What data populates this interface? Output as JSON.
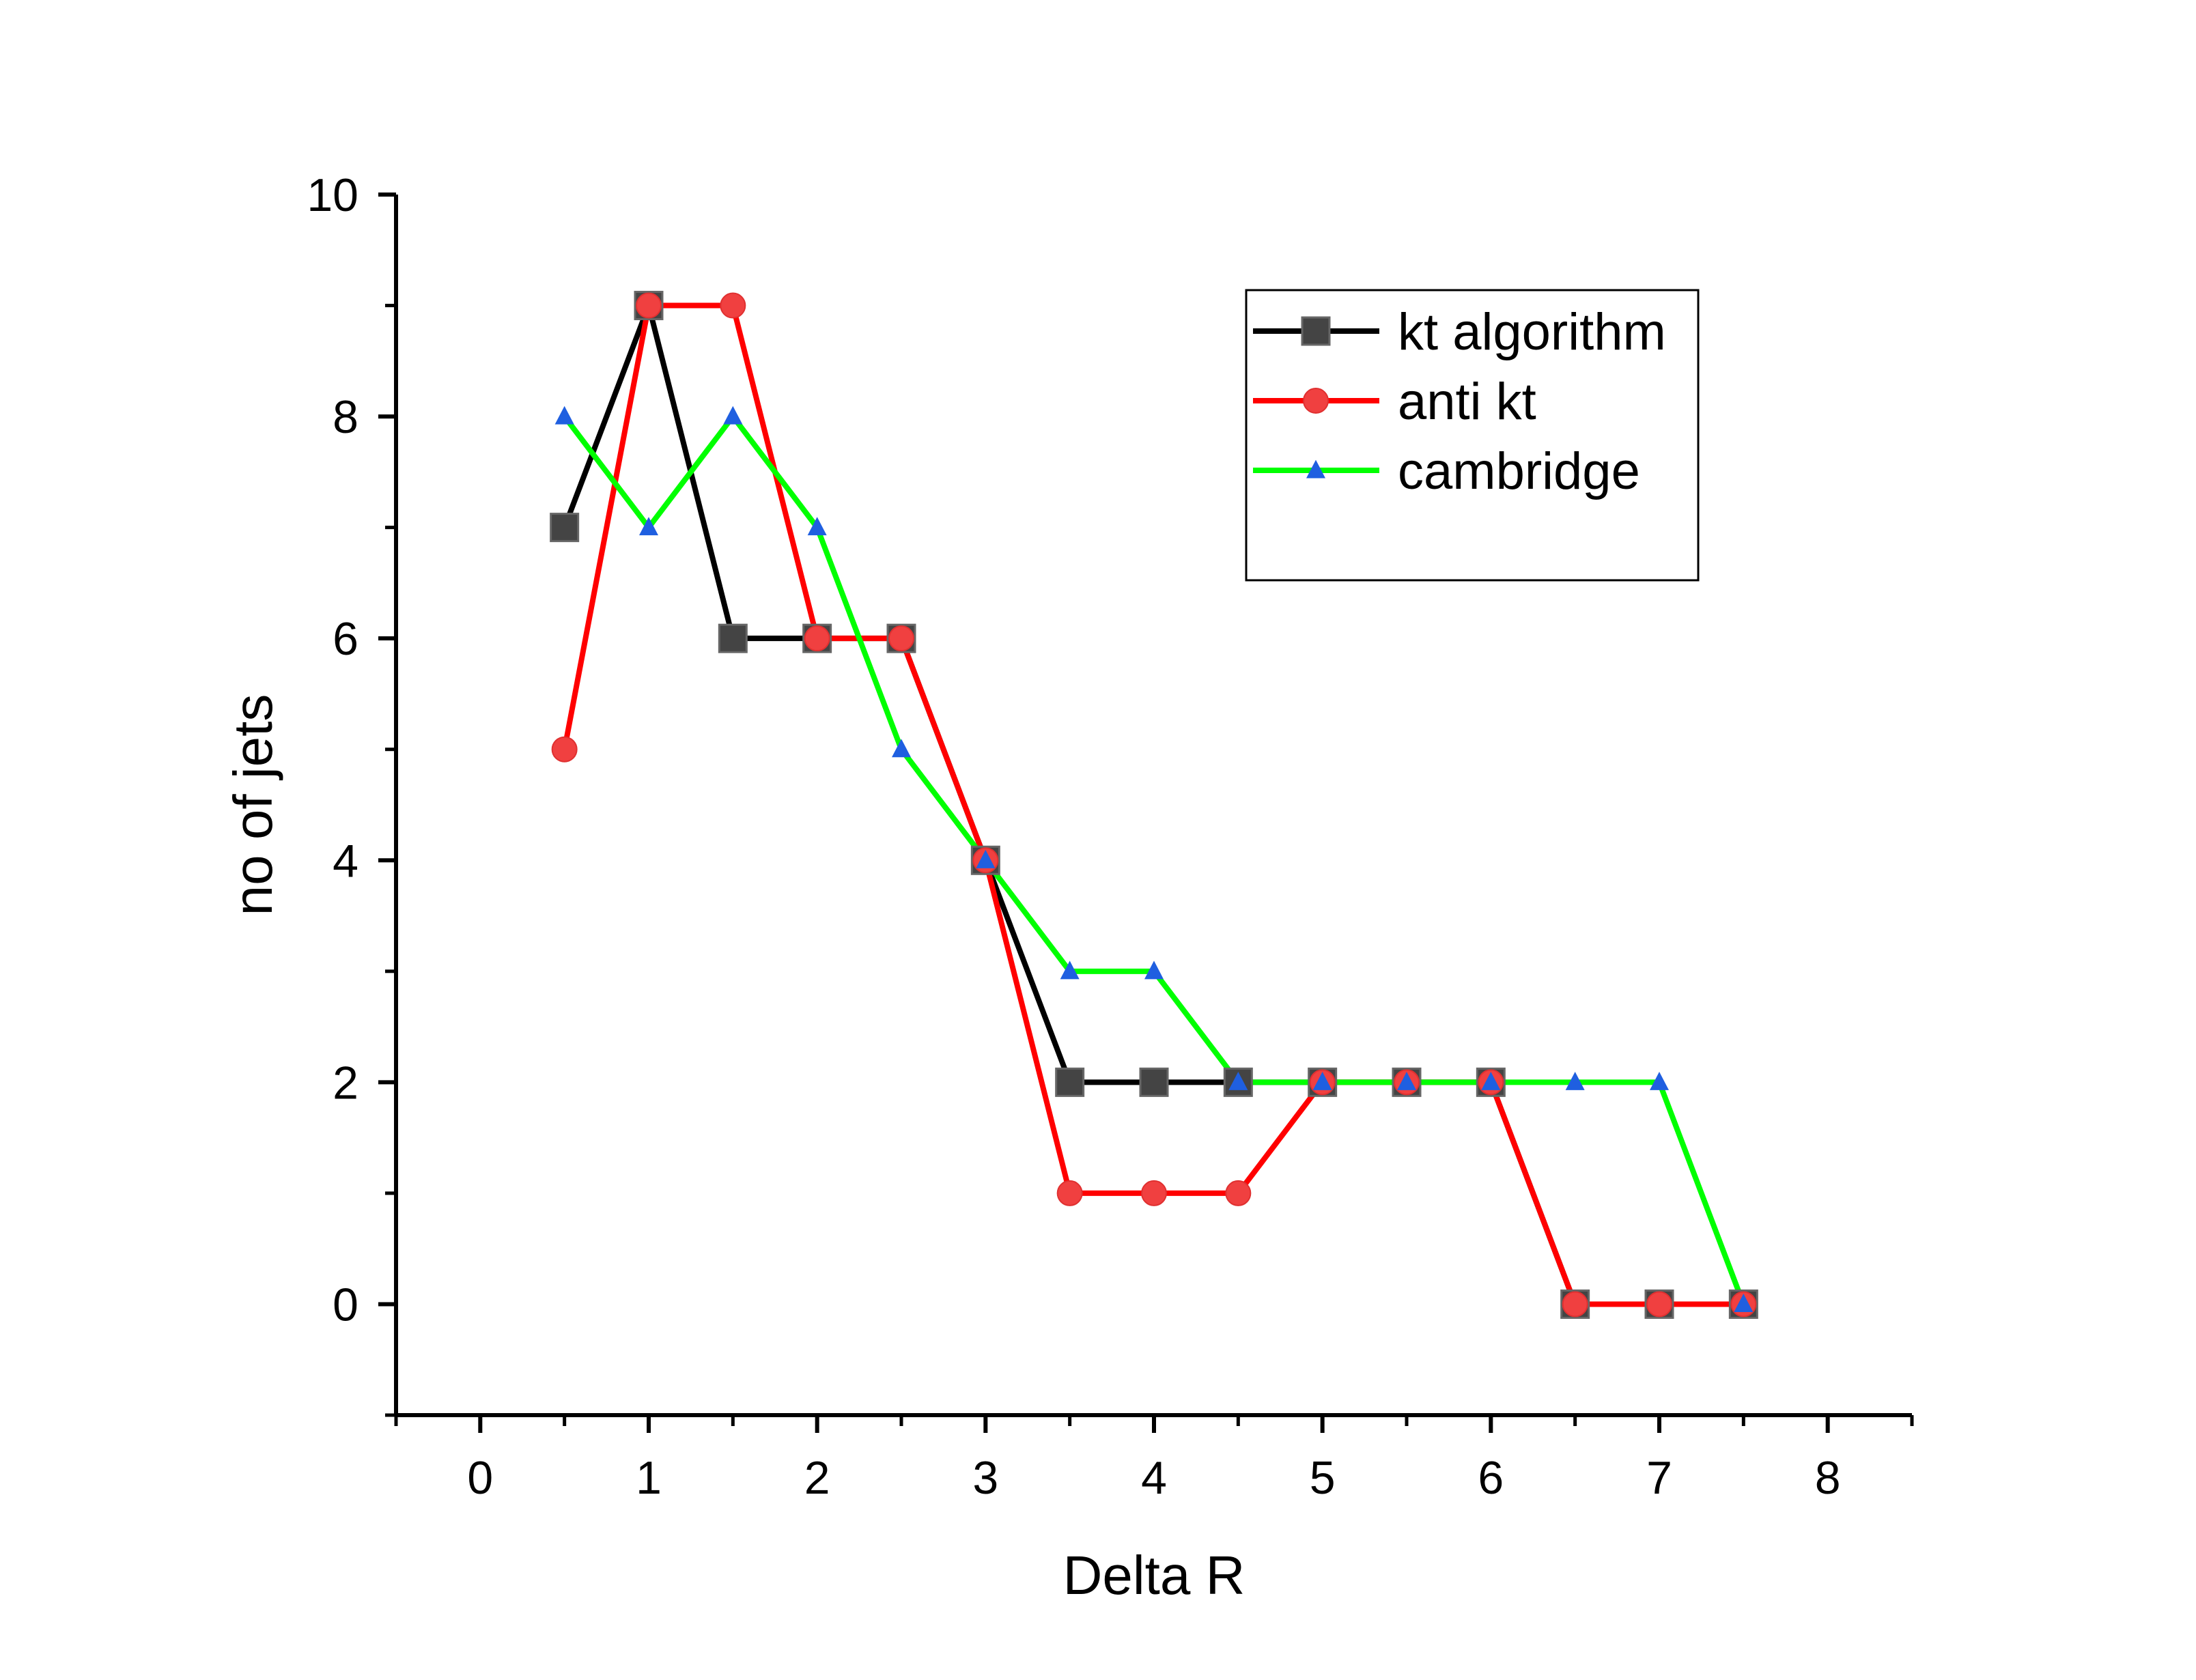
{
  "chart_data": {
    "type": "line",
    "xlabel": "Delta R",
    "ylabel": "no of jets",
    "xlim": [
      -0.5,
      8.5
    ],
    "ylim": [
      -1,
      10
    ],
    "x_ticks": [
      0,
      1,
      2,
      3,
      4,
      5,
      6,
      7,
      8
    ],
    "y_ticks": [
      0,
      2,
      4,
      6,
      8,
      10
    ],
    "grid": false,
    "legend_position": "top-right",
    "x": [
      0.5,
      1.0,
      1.5,
      2.0,
      2.5,
      3.0,
      3.5,
      4.0,
      4.5,
      5.0,
      5.5,
      6.0,
      6.5,
      7.0,
      7.5
    ],
    "series": [
      {
        "name": "kt algorithm",
        "marker": "square",
        "line_color": "#000000",
        "marker_color": "#444444",
        "values": [
          7,
          9,
          6,
          6,
          6,
          4,
          2,
          2,
          2,
          2,
          2,
          2,
          0,
          0,
          0
        ]
      },
      {
        "name": "anti kt",
        "marker": "circle",
        "line_color": "#ff0000",
        "marker_color": "#f04040",
        "values": [
          5,
          9,
          9,
          6,
          6,
          4,
          1,
          1,
          1,
          2,
          2,
          2,
          0,
          0,
          0
        ]
      },
      {
        "name": "cambridge",
        "marker": "triangle",
        "line_color": "#00ff00",
        "marker_color": "#1f5fe0",
        "values": [
          8,
          7,
          8,
          7,
          5,
          4,
          3,
          3,
          2,
          2,
          2,
          2,
          2,
          2,
          0
        ]
      }
    ]
  }
}
